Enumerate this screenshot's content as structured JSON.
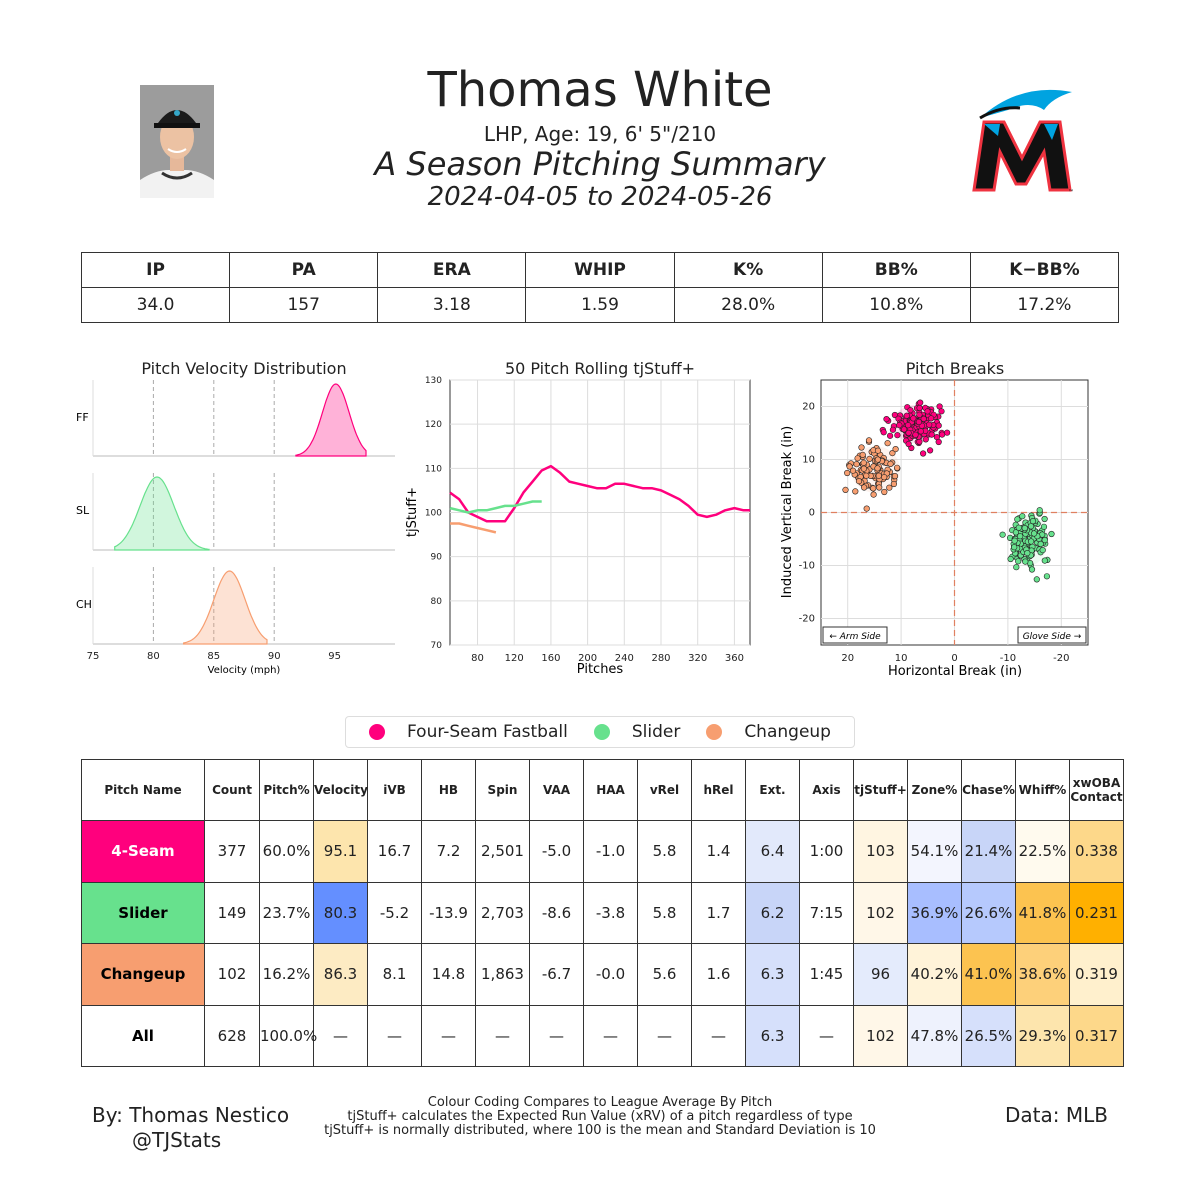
{
  "header": {
    "name": "Thomas White",
    "info": "LHP, Age: 19, 6' 5\"/210",
    "subtitle": "A Season Pitching Summary",
    "dates": "2024-04-05 to 2024-05-26"
  },
  "stats": {
    "headers": [
      "IP",
      "PA",
      "ERA",
      "WHIP",
      "K%",
      "BB%",
      "K−BB%"
    ],
    "values": [
      "34.0",
      "157",
      "3.18",
      "1.59",
      "28.0%",
      "10.8%",
      "17.2%"
    ]
  },
  "colors": {
    "ff": "#ff007d",
    "sl": "#67e18d",
    "ch": "#f79e70"
  },
  "chart_data": [
    {
      "type": "area",
      "title": "Pitch Velocity Distribution",
      "xlabel": "Velocity (mph)",
      "xlim": [
        75,
        100
      ],
      "xticks": [
        75,
        80,
        85,
        90,
        95
      ],
      "series": [
        {
          "name": "FF",
          "mean": 95.1,
          "sd": 1.1,
          "range": [
            91.8,
            97.6
          ]
        },
        {
          "name": "SL",
          "mean": 80.3,
          "sd": 1.4,
          "range": [
            76.8,
            84.6
          ]
        },
        {
          "name": "CH",
          "mean": 86.3,
          "sd": 1.3,
          "range": [
            82.5,
            89.4
          ]
        }
      ]
    },
    {
      "type": "line",
      "title": "50 Pitch Rolling tjStuff+",
      "xlabel": "Pitches",
      "ylabel": "tjStuff+",
      "xlim": [
        50,
        377
      ],
      "ylim": [
        70,
        130
      ],
      "xticks": [
        80,
        120,
        160,
        200,
        240,
        280,
        320,
        360
      ],
      "yticks": [
        70,
        80,
        90,
        100,
        110,
        120,
        130
      ],
      "series": [
        {
          "name": "Four-Seam Fastball",
          "x": [
            50,
            60,
            70,
            80,
            90,
            100,
            110,
            120,
            130,
            140,
            150,
            160,
            170,
            180,
            190,
            200,
            210,
            220,
            230,
            240,
            250,
            260,
            270,
            280,
            290,
            300,
            310,
            320,
            330,
            340,
            350,
            360,
            370,
            377
          ],
          "y": [
            104.5,
            103,
            100,
            99,
            98,
            98,
            98,
            101,
            104.5,
            107,
            109.5,
            110.5,
            109,
            107,
            106.5,
            106,
            105.5,
            105.5,
            106.5,
            106.5,
            106,
            105.5,
            105.5,
            105,
            104,
            103,
            101.5,
            99.5,
            99,
            99.5,
            100.5,
            101,
            100.5,
            100.5
          ]
        },
        {
          "name": "Slider",
          "x": [
            50,
            60,
            70,
            80,
            90,
            100,
            110,
            120,
            130,
            140,
            150
          ],
          "y": [
            101,
            100.5,
            100,
            100.5,
            100.5,
            101,
            101.5,
            101.5,
            102,
            102.5,
            102.5
          ]
        },
        {
          "name": "Changeup",
          "x": [
            50,
            60,
            70,
            80,
            90,
            100
          ],
          "y": [
            97.5,
            97.5,
            97,
            96.5,
            96,
            95.5
          ]
        }
      ]
    },
    {
      "type": "scatter",
      "title": "Pitch Breaks",
      "xlabel": "Horizontal Break (in)",
      "ylabel": "Induced Vertical Break (in)",
      "xlim": [
        25,
        -25
      ],
      "ylim": [
        -25,
        25
      ],
      "xticks": [
        20,
        10,
        0,
        -10,
        -20
      ],
      "yticks": [
        -20,
        -10,
        0,
        10,
        20
      ],
      "annotations": [
        "← Arm Side",
        "Glove Side →"
      ],
      "series": [
        {
          "name": "Four-Seam Fastball",
          "n": 377,
          "cx": 7.2,
          "cy": 16.7,
          "sx": 2.2,
          "sy": 1.8
        },
        {
          "name": "Slider",
          "n": 149,
          "cx": -13.9,
          "cy": -5.2,
          "sx": 1.8,
          "sy": 2.4
        },
        {
          "name": "Changeup",
          "n": 102,
          "cx": 14.8,
          "cy": 8.1,
          "sx": 2.3,
          "sy": 2.2
        }
      ]
    }
  ],
  "legend": [
    "Four-Seam Fastball",
    "Slider",
    "Changeup"
  ],
  "pitch_table": {
    "headers": [
      "Pitch Name",
      "Count",
      "Pitch%",
      "Velocity",
      "iVB",
      "HB",
      "Spin",
      "VAA",
      "HAA",
      "vRel",
      "hRel",
      "Ext.",
      "Axis",
      "tjStuff+",
      "Zone%",
      "Chase%",
      "Whiff%",
      "xwOBA Contact"
    ],
    "rows": [
      {
        "cells": [
          "4-Seam",
          "377",
          "60.0%",
          "95.1",
          "16.7",
          "7.2",
          "2,501",
          "-5.0",
          "-1.0",
          "5.8",
          "1.4",
          "6.4",
          "1:00",
          "103",
          "54.1%",
          "21.4%",
          "22.5%",
          "0.338"
        ],
        "bg": [
          "#ff007d",
          "#fff",
          "#fff",
          "#fde5ad",
          "#fff",
          "#fff",
          "#fff",
          "#fff",
          "#fff",
          "#fff",
          "#fff",
          "#e2e9fb",
          "#fff",
          "#fff5e1",
          "#f3f5fe",
          "#c8d5f8",
          "#fffaee",
          "#fdd88a"
        ],
        "fg": "#ffffff"
      },
      {
        "cells": [
          "Slider",
          "149",
          "23.7%",
          "80.3",
          "-5.2",
          "-13.9",
          "2,703",
          "-8.6",
          "-3.8",
          "5.8",
          "1.7",
          "6.2",
          "7:15",
          "102",
          "36.9%",
          "26.6%",
          "41.8%",
          "0.231"
        ],
        "bg": [
          "#67e18d",
          "#fff",
          "#fff",
          "#648fff",
          "#fff",
          "#fff",
          "#fff",
          "#fff",
          "#fff",
          "#fff",
          "#fff",
          "#c8d5f8",
          "#fff",
          "#fff7e8",
          "#a8beff",
          "#b6c9fd",
          "#fcc350",
          "#ffb000"
        ],
        "fg": "#000000"
      },
      {
        "cells": [
          "Changeup",
          "102",
          "16.2%",
          "86.3",
          "8.1",
          "14.8",
          "1,863",
          "-6.7",
          "-0.0",
          "5.6",
          "1.6",
          "6.3",
          "1:45",
          "96",
          "40.2%",
          "41.0%",
          "38.6%",
          "0.319"
        ],
        "bg": [
          "#f79e70",
          "#fff",
          "#fff",
          "#fdebc3",
          "#fff",
          "#fff",
          "#fff",
          "#fff",
          "#fff",
          "#fff",
          "#fff",
          "#d6e0fb",
          "#fff",
          "#e4ebfc",
          "#fff3d9",
          "#fcc350",
          "#fdd07a",
          "#fff0cd"
        ],
        "fg": "#000000"
      },
      {
        "cells": [
          "All",
          "628",
          "100.0%",
          "—",
          "—",
          "—",
          "—",
          "—",
          "—",
          "—",
          "—",
          "6.3",
          "—",
          "102",
          "47.8%",
          "26.5%",
          "29.3%",
          "0.317"
        ],
        "bg": [
          "#fff",
          "#fff",
          "#fff",
          "#fff",
          "#fff",
          "#fff",
          "#fff",
          "#fff",
          "#fff",
          "#fff",
          "#fff",
          "#d6e0fb",
          "#fff",
          "#fff7e8",
          "#eef2fd",
          "#d6e0fb",
          "#fde5ad",
          "#fdd88a"
        ],
        "fg": "#000000"
      }
    ]
  },
  "footer": {
    "by": "By: Thomas Nestico",
    "handle": "@TJStats",
    "note1": "Colour Coding Compares to League Average By Pitch",
    "note2": "tjStuff+ calculates the Expected Run Value (xRV) of a pitch regardless of type",
    "note3": "tjStuff+ is normally distributed, where 100 is the mean and Standard Deviation is 10",
    "source": "Data: MLB"
  }
}
